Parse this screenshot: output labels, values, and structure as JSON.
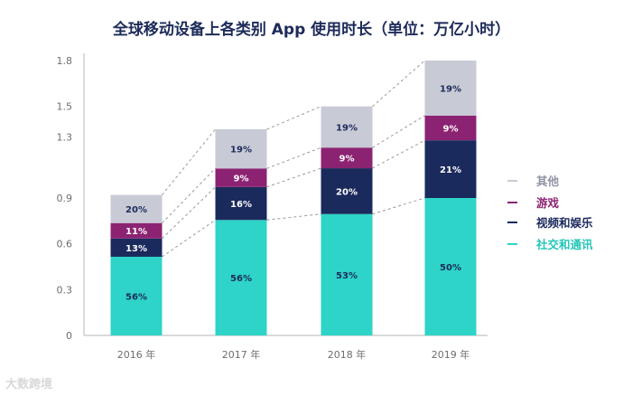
{
  "chart_data": {
    "type": "bar",
    "stacked": true,
    "title": "全球移动设备上各类别 App 使用时长（单位：万亿小时）",
    "categories": [
      "2016 年",
      "2017 年",
      "2018 年",
      "2019 年"
    ],
    "totals": [
      0.92,
      1.35,
      1.5,
      1.8
    ],
    "yticks": [
      "0",
      "0.3",
      "0.6",
      "0.9",
      "1.3",
      "1.5",
      "1.8"
    ],
    "ytick_values": [
      0,
      0.3,
      0.6,
      0.9,
      1.3,
      1.5,
      1.8
    ],
    "ylim": [
      0,
      1.8
    ],
    "xlabel": "",
    "ylabel": "",
    "legend_position": "right",
    "series": [
      {
        "name": "社交和通讯",
        "color": "#2dd4c7",
        "label_color": "#1d2b5a",
        "shares": [
          56,
          56,
          53,
          50
        ],
        "labels": [
          "56%",
          "56%",
          "53%",
          "50%"
        ]
      },
      {
        "name": "视频和娱乐",
        "color": "#1b2a5c",
        "label_color": "#ffffff",
        "shares": [
          13,
          16,
          20,
          21
        ],
        "labels": [
          "13%",
          "16%",
          "20%",
          "21%"
        ]
      },
      {
        "name": "游戏",
        "color": "#8c2372",
        "label_color": "#ffffff",
        "shares": [
          11,
          9,
          9,
          9
        ],
        "labels": [
          "11%",
          "9%",
          "9%",
          "9%"
        ]
      },
      {
        "name": "其他",
        "color": "#c8cad6",
        "label_color": "#1d2b5a",
        "shares": [
          20,
          19,
          19,
          19
        ],
        "labels": [
          "20%",
          "19%",
          "19%",
          "19%"
        ]
      }
    ],
    "legend_order": [
      "其他",
      "游戏",
      "视频和娱乐",
      "社交和通讯"
    ]
  },
  "watermark": "大数跨境"
}
